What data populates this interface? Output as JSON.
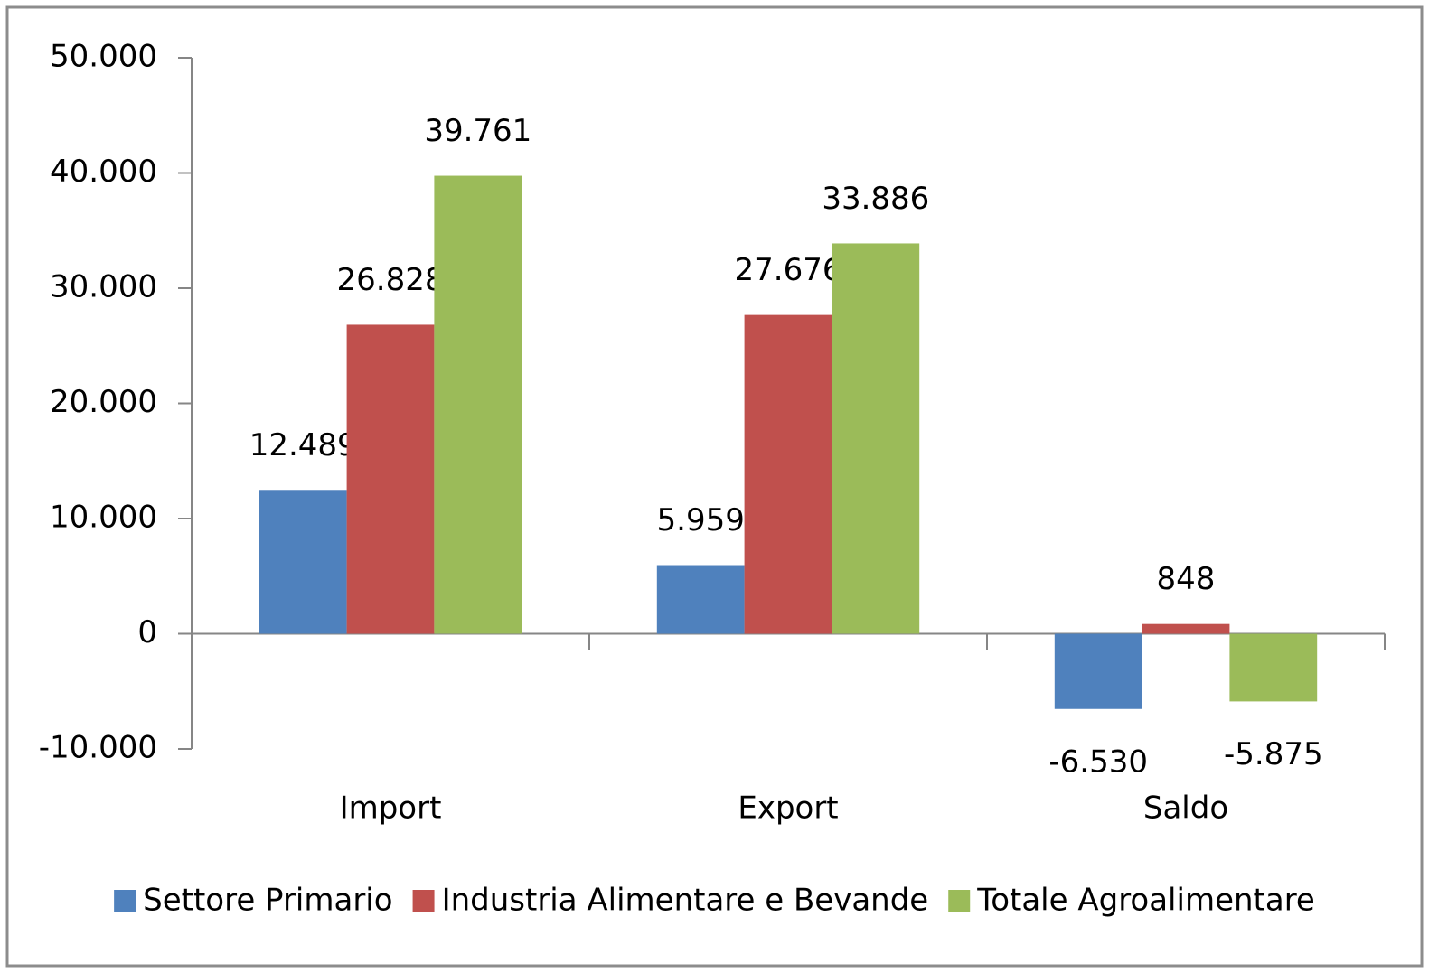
{
  "chart_data": {
    "type": "bar",
    "categories": [
      "Import",
      "Export",
      "Saldo"
    ],
    "series": [
      {
        "name": "Settore Primario",
        "color": "#4f81bd",
        "values": [
          12489,
          5959,
          -6530
        ],
        "value_labels": [
          "12.489",
          "5.959",
          "-6.530"
        ]
      },
      {
        "name": "Industria Alimentare e Bevande",
        "color": "#c0504d",
        "values": [
          26828,
          27676,
          848
        ],
        "value_labels": [
          "26.828",
          "27.676",
          "848"
        ]
      },
      {
        "name": "Totale Agroalimentare",
        "color": "#9bbb59",
        "values": [
          39761,
          33886,
          -5875
        ],
        "value_labels": [
          "39.761",
          "33.886",
          "-5.875"
        ]
      }
    ],
    "ylim": [
      -10000,
      50000
    ],
    "yticks": [
      {
        "value": -10000,
        "label": "-10.000"
      },
      0,
      {
        "value": 10000,
        "label": "10.000"
      },
      {
        "value": 20000,
        "label": "20.000"
      },
      {
        "value": 30000,
        "label": "30.000"
      },
      {
        "value": 40000,
        "label": "40.000"
      },
      {
        "value": 50000,
        "label": "50.000"
      }
    ],
    "grid": false,
    "legend": "bottom"
  }
}
